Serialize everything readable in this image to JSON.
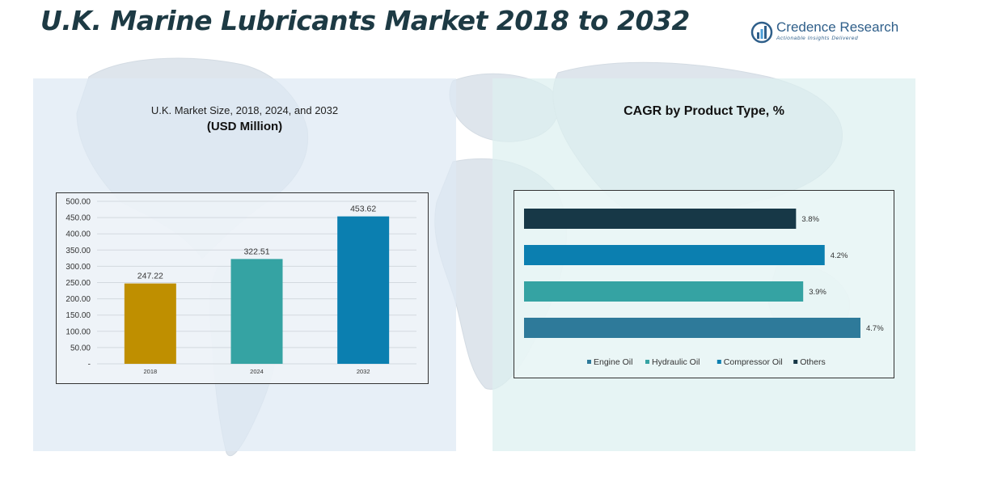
{
  "title": "U.K. Marine Lubricants Market 2018 to 2032",
  "logo": {
    "name": "Credence Research",
    "tagline": "Actionable Insights Delivered"
  },
  "colors": {
    "title": "#1d3a44",
    "bar_2018": "#bf8f00",
    "bar_2024": "#35a3a3",
    "bar_2032": "#0b7fb0",
    "engine_oil": "#2e7a9a",
    "hydraulic_oil": "#35a3a3",
    "compressor_oil": "#0b7fb0",
    "others": "#173847"
  },
  "chart_data": [
    {
      "type": "bar",
      "title": "U.K. Market Size, 2018, 2024, and 2032",
      "subtitle": "(USD Million)",
      "categories": [
        "2018",
        "2024",
        "2032"
      ],
      "values": [
        247.22,
        322.51,
        453.62
      ],
      "data_labels": [
        "247.22",
        "322.51",
        "453.62"
      ],
      "ylim": [
        0,
        500
      ],
      "yticks": [
        "-",
        "50.00",
        "100.00",
        "150.00",
        "200.00",
        "250.00",
        "300.00",
        "350.00",
        "400.00",
        "450.00",
        "500.00"
      ],
      "grid": true
    },
    {
      "type": "bar",
      "orientation": "horizontal",
      "title": "CAGR by Product Type, %",
      "categories": [
        "Others",
        "Compressor Oil",
        "Hydraulic Oil",
        "Engine Oil"
      ],
      "values": [
        3.8,
        4.2,
        3.9,
        4.7
      ],
      "data_labels": [
        "3.8%",
        "4.2%",
        "3.9%",
        "4.7%"
      ],
      "legend": [
        "Engine Oil",
        "Hydraulic Oil",
        "Compressor Oil",
        "Others"
      ],
      "legend_position": "bottom"
    }
  ]
}
